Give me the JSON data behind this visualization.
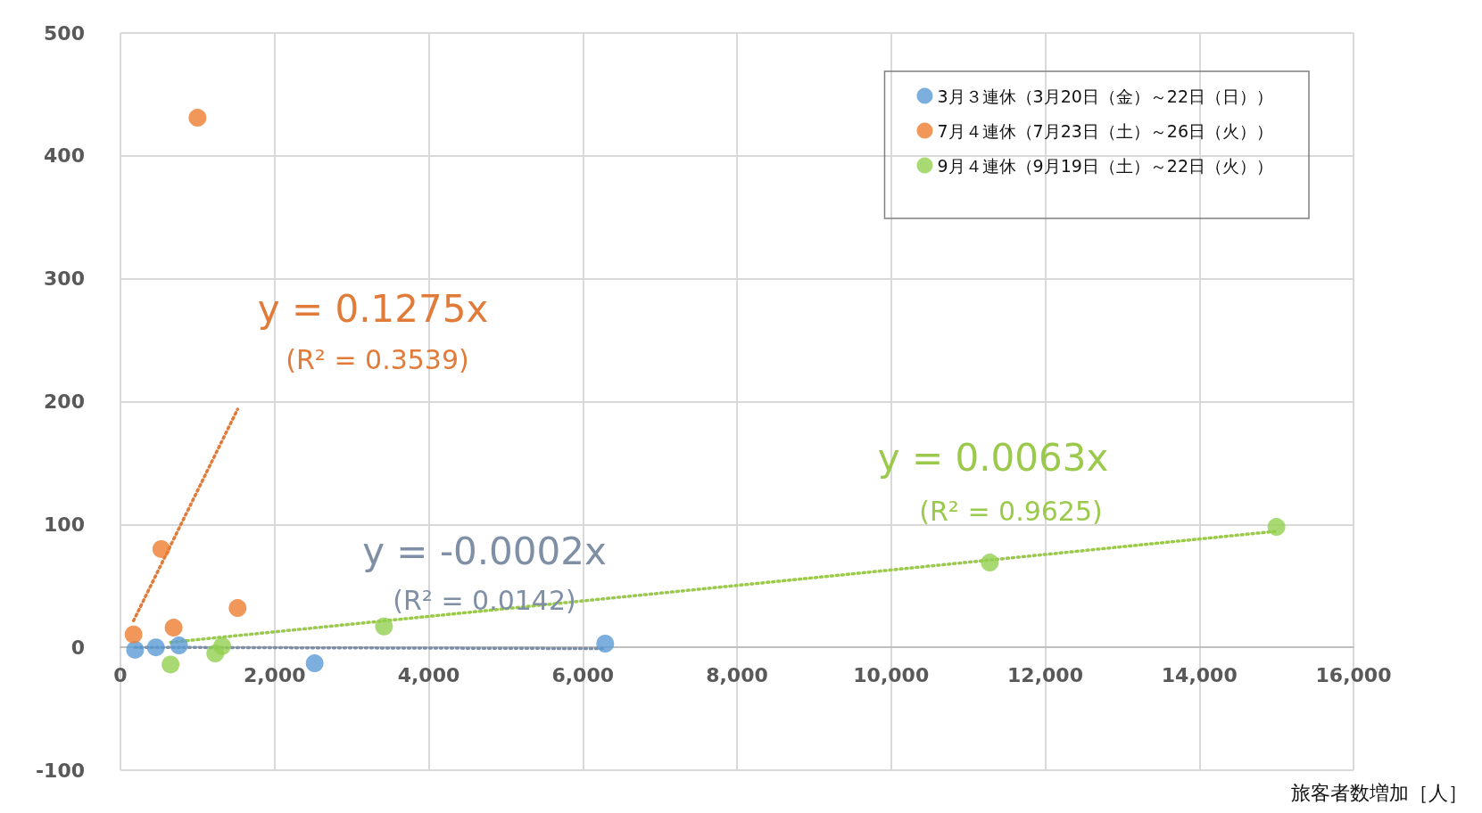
{
  "chart_data": {
    "type": "scatter",
    "xlabel": "旅客者数増加［人］",
    "xlim": [
      0,
      16000
    ],
    "xticks": [
      0,
      {
        "value": 2000,
        "label": "2,000"
      },
      {
        "value": 4000,
        "label": "4,000"
      },
      {
        "value": 6000,
        "label": "6,000"
      },
      {
        "value": 8000,
        "label": "8,000"
      },
      {
        "value": 10000,
        "label": "10,000"
      },
      {
        "value": 12000,
        "label": "12,000"
      },
      {
        "value": 14000,
        "label": "14,000"
      },
      {
        "value": 16000,
        "label": "16,000"
      }
    ],
    "ylim": [
      -100,
      500
    ],
    "yticks": [
      -100,
      0,
      100,
      200,
      300,
      400,
      500
    ],
    "grid": true,
    "legend": "top right",
    "marker": "circle",
    "series": [
      {
        "name": "3月３連休（3月20日（金）～22日（日））",
        "color": "#5b9bd5",
        "x": [
          190,
          460,
          760,
          2520,
          6290
        ],
        "values": [
          -2,
          0,
          1.5,
          -13,
          3
        ]
      },
      {
        "name": "7月４連休（7月23日（土）～26日（火））",
        "color": "#ed7d31",
        "x": [
          170,
          530,
          690,
          1000,
          1520
        ],
        "values": [
          10.5,
          80,
          16,
          431,
          32
        ]
      },
      {
        "name": "9月４連休（9月19日（土）～22日（火））",
        "color": "#92d050",
        "x": [
          650,
          1230,
          1320,
          3420,
          11280,
          15000
        ],
        "values": [
          -14,
          -5,
          1,
          17,
          69,
          98
        ]
      },
      {
        "type": "line",
        "color": "#7f8fa6",
        "line_style": "dotted",
        "marker": "none",
        "x": [
          190,
          6290
        ],
        "values": [
          0,
          -1
        ]
      },
      {
        "type": "line",
        "color": "#e07b39",
        "line_style": "dotted",
        "marker": "none",
        "x": [
          170,
          1520
        ],
        "values": [
          21.7,
          193.8
        ]
      },
      {
        "type": "line",
        "color": "#9bc94b",
        "line_style": "dotted",
        "marker": "none",
        "x": [
          650,
          15000
        ],
        "values": [
          4.1,
          94.5
        ]
      }
    ],
    "annotations": [
      "y = -0.0002x",
      "(R² = 0.0142)",
      "y = 0.1275x",
      "(R² = 0.3539)",
      "y = 0.0063x",
      "(R² = 0.9625)"
    ]
  }
}
